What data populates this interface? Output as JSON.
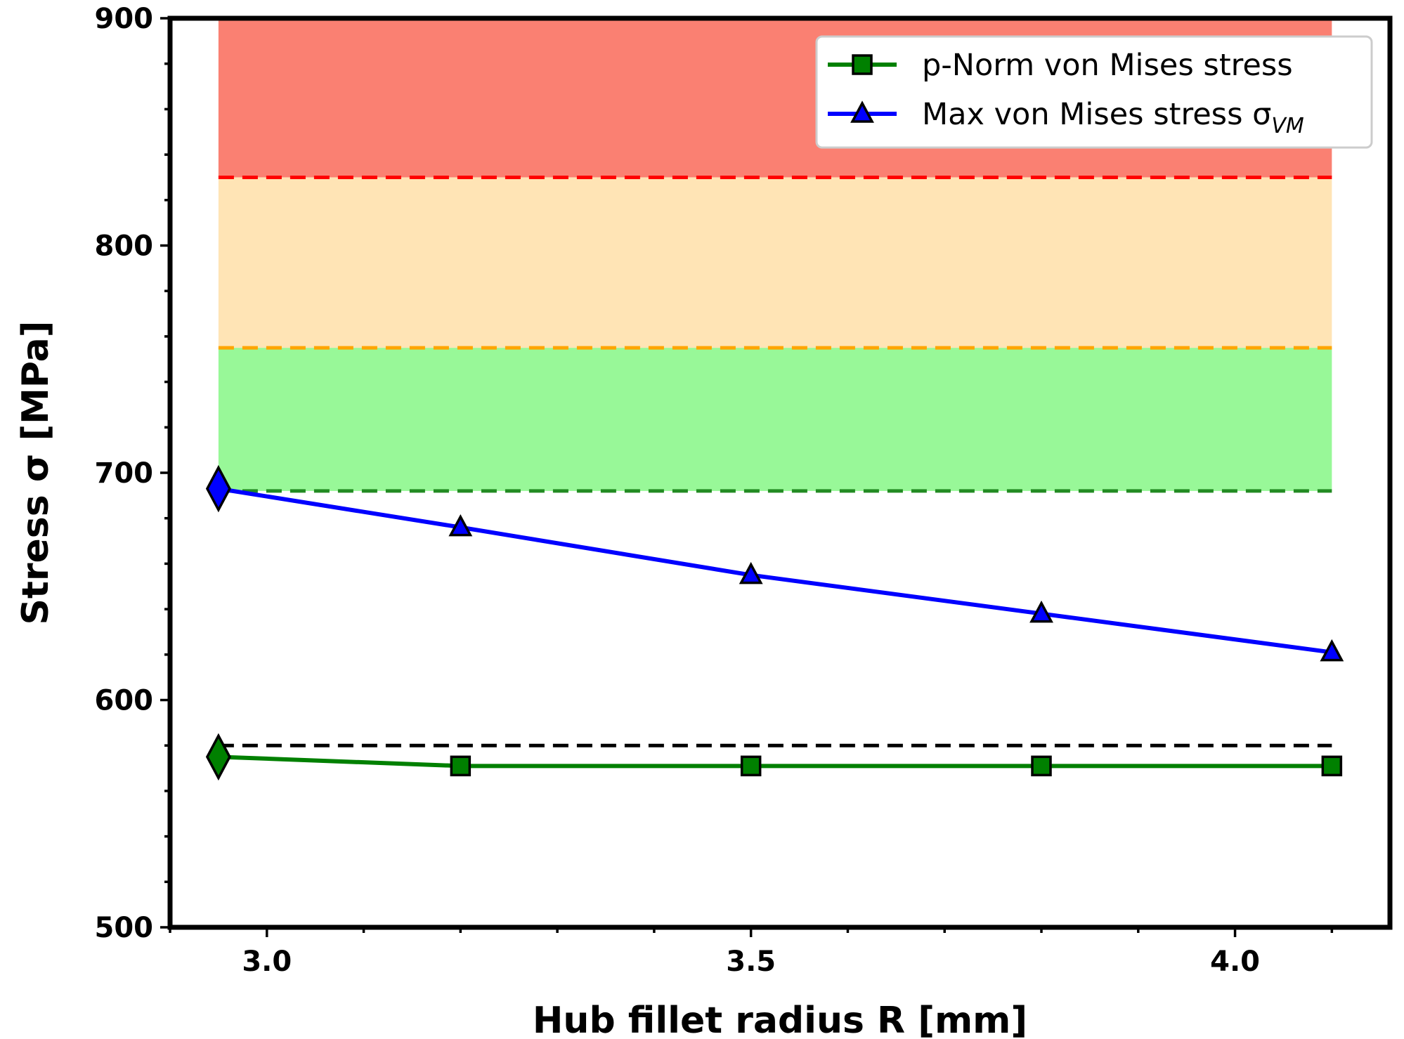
{
  "chart_data": {
    "type": "line",
    "xlabel": "Hub fillet radius R [mm]",
    "ylabel": "Stress σ [MPa]",
    "xlim": [
      2.9,
      4.16
    ],
    "ylim": [
      500,
      900
    ],
    "x_ticks": [
      3.0,
      3.5,
      4.0
    ],
    "x_tick_labels": [
      "3.0",
      "3.5",
      "4.0"
    ],
    "x_minor_step": 0.1,
    "y_ticks": [
      500,
      600,
      700,
      800,
      900
    ],
    "y_tick_labels": [
      "500",
      "600",
      "700",
      "800",
      "900"
    ],
    "y_minor_step": 20,
    "grid": false,
    "legend_position": "top-right",
    "bands": [
      {
        "from": 692,
        "to": 755,
        "color": "#98f898",
        "line_color": "#228b22"
      },
      {
        "from": 755,
        "to": 830,
        "color": "#ffe4b5",
        "line_color": "#ffa500"
      },
      {
        "from": 830,
        "to": 900,
        "color": "#fa8072",
        "line_color": "#ff0000"
      }
    ],
    "bands_x_range": [
      2.95,
      4.1
    ],
    "reference_line": {
      "y": 580,
      "x_range": [
        2.95,
        4.1
      ],
      "color": "#000000"
    },
    "series": [
      {
        "name": "p-Norm von Mises stress",
        "x": [
          2.95,
          3.2,
          3.5,
          3.8,
          4.1
        ],
        "y": [
          575,
          571,
          571,
          571,
          571
        ],
        "color": "#008000",
        "marker": "square",
        "highlight_first": "diamond"
      },
      {
        "name": "Max von Mises stress σ",
        "name_subscript": "VM",
        "x": [
          2.95,
          3.2,
          3.5,
          3.8,
          4.1
        ],
        "y": [
          693,
          676,
          655,
          638,
          621
        ],
        "color": "#0000ff",
        "marker": "triangle",
        "highlight_first": "diamond"
      }
    ]
  }
}
